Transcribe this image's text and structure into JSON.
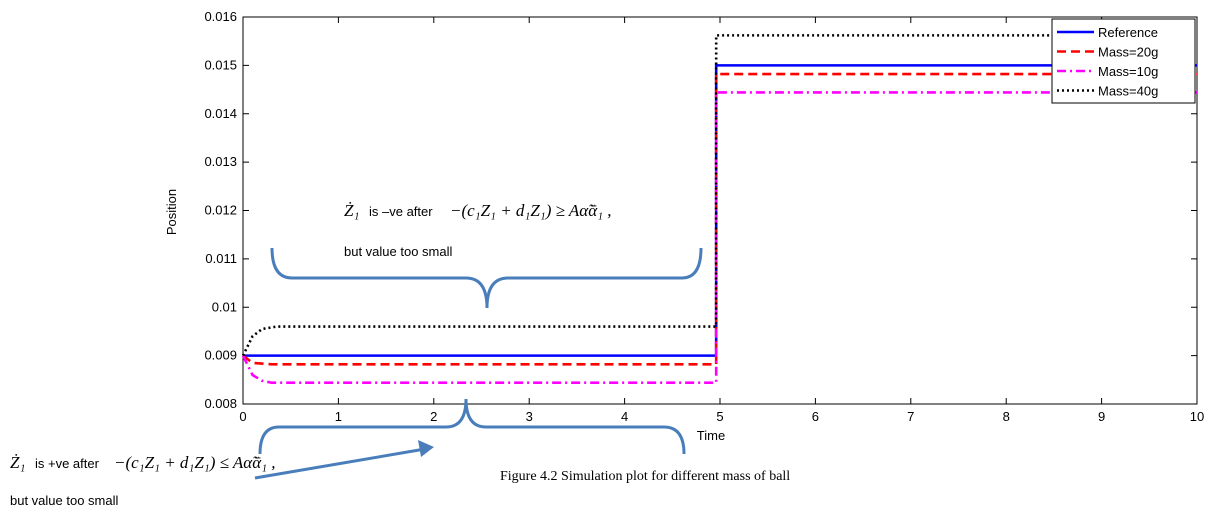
{
  "chart_data": {
    "type": "line",
    "title": "",
    "xlabel": "Time",
    "ylabel": "Position",
    "xlim": [
      0,
      10
    ],
    "ylim": [
      0.008,
      0.016
    ],
    "xticks": [
      "0",
      "1",
      "2",
      "3",
      "4",
      "5",
      "6",
      "7",
      "8",
      "9",
      "10"
    ],
    "yticks": [
      "0.008",
      "0.009",
      "0.01",
      "0.011",
      "0.012",
      "0.013",
      "0.014",
      "0.015",
      "0.016"
    ],
    "legend_position": "top-right",
    "grid": false,
    "series": [
      {
        "name": "Reference",
        "color": "#0000ff",
        "style": "solid",
        "x": [
          0,
          4.96,
          4.96,
          10
        ],
        "y": [
          0.009,
          0.009,
          0.015,
          0.015
        ]
      },
      {
        "name": "Mass=20g",
        "color": "#ff0000",
        "style": "dashed",
        "x": [
          0,
          0.1,
          0.3,
          4.96,
          4.96,
          10
        ],
        "y": [
          0.009,
          0.00885,
          0.00882,
          0.00882,
          0.01482,
          0.01482
        ]
      },
      {
        "name": "Mass=10g",
        "color": "#ff00ff",
        "style": "dashdot",
        "x": [
          0,
          0.1,
          0.2,
          0.3,
          4.96,
          4.96,
          10
        ],
        "y": [
          0.009,
          0.0086,
          0.00848,
          0.00844,
          0.00844,
          0.01444,
          0.01444
        ]
      },
      {
        "name": "Mass=40g",
        "color": "#000000",
        "style": "dotted",
        "x": [
          0,
          0.1,
          0.2,
          0.35,
          4.96,
          4.96,
          10
        ],
        "y": [
          0.009,
          0.0094,
          0.00955,
          0.0096,
          0.0096,
          0.01562,
          0.01562
        ]
      }
    ]
  },
  "annotations": {
    "upper_prefix": "is –ve after",
    "upper_formula": "−(c₁Z₁ + d₁Z₁) ≥ Aα̃ᾱ₁ ,",
    "upper_note": "but value too small",
    "lower_prefix": "is +ve after",
    "lower_formula": "−(c₁Z₁ + d₁Z₁) ≤ Aα̃ᾱ₁ ,",
    "lower_note": "but value too small",
    "symbol": "Ż₁"
  },
  "caption": "Figure 4.2  Simulation plot for different mass of ball",
  "colors": {
    "brace": "#4a7ebb"
  }
}
